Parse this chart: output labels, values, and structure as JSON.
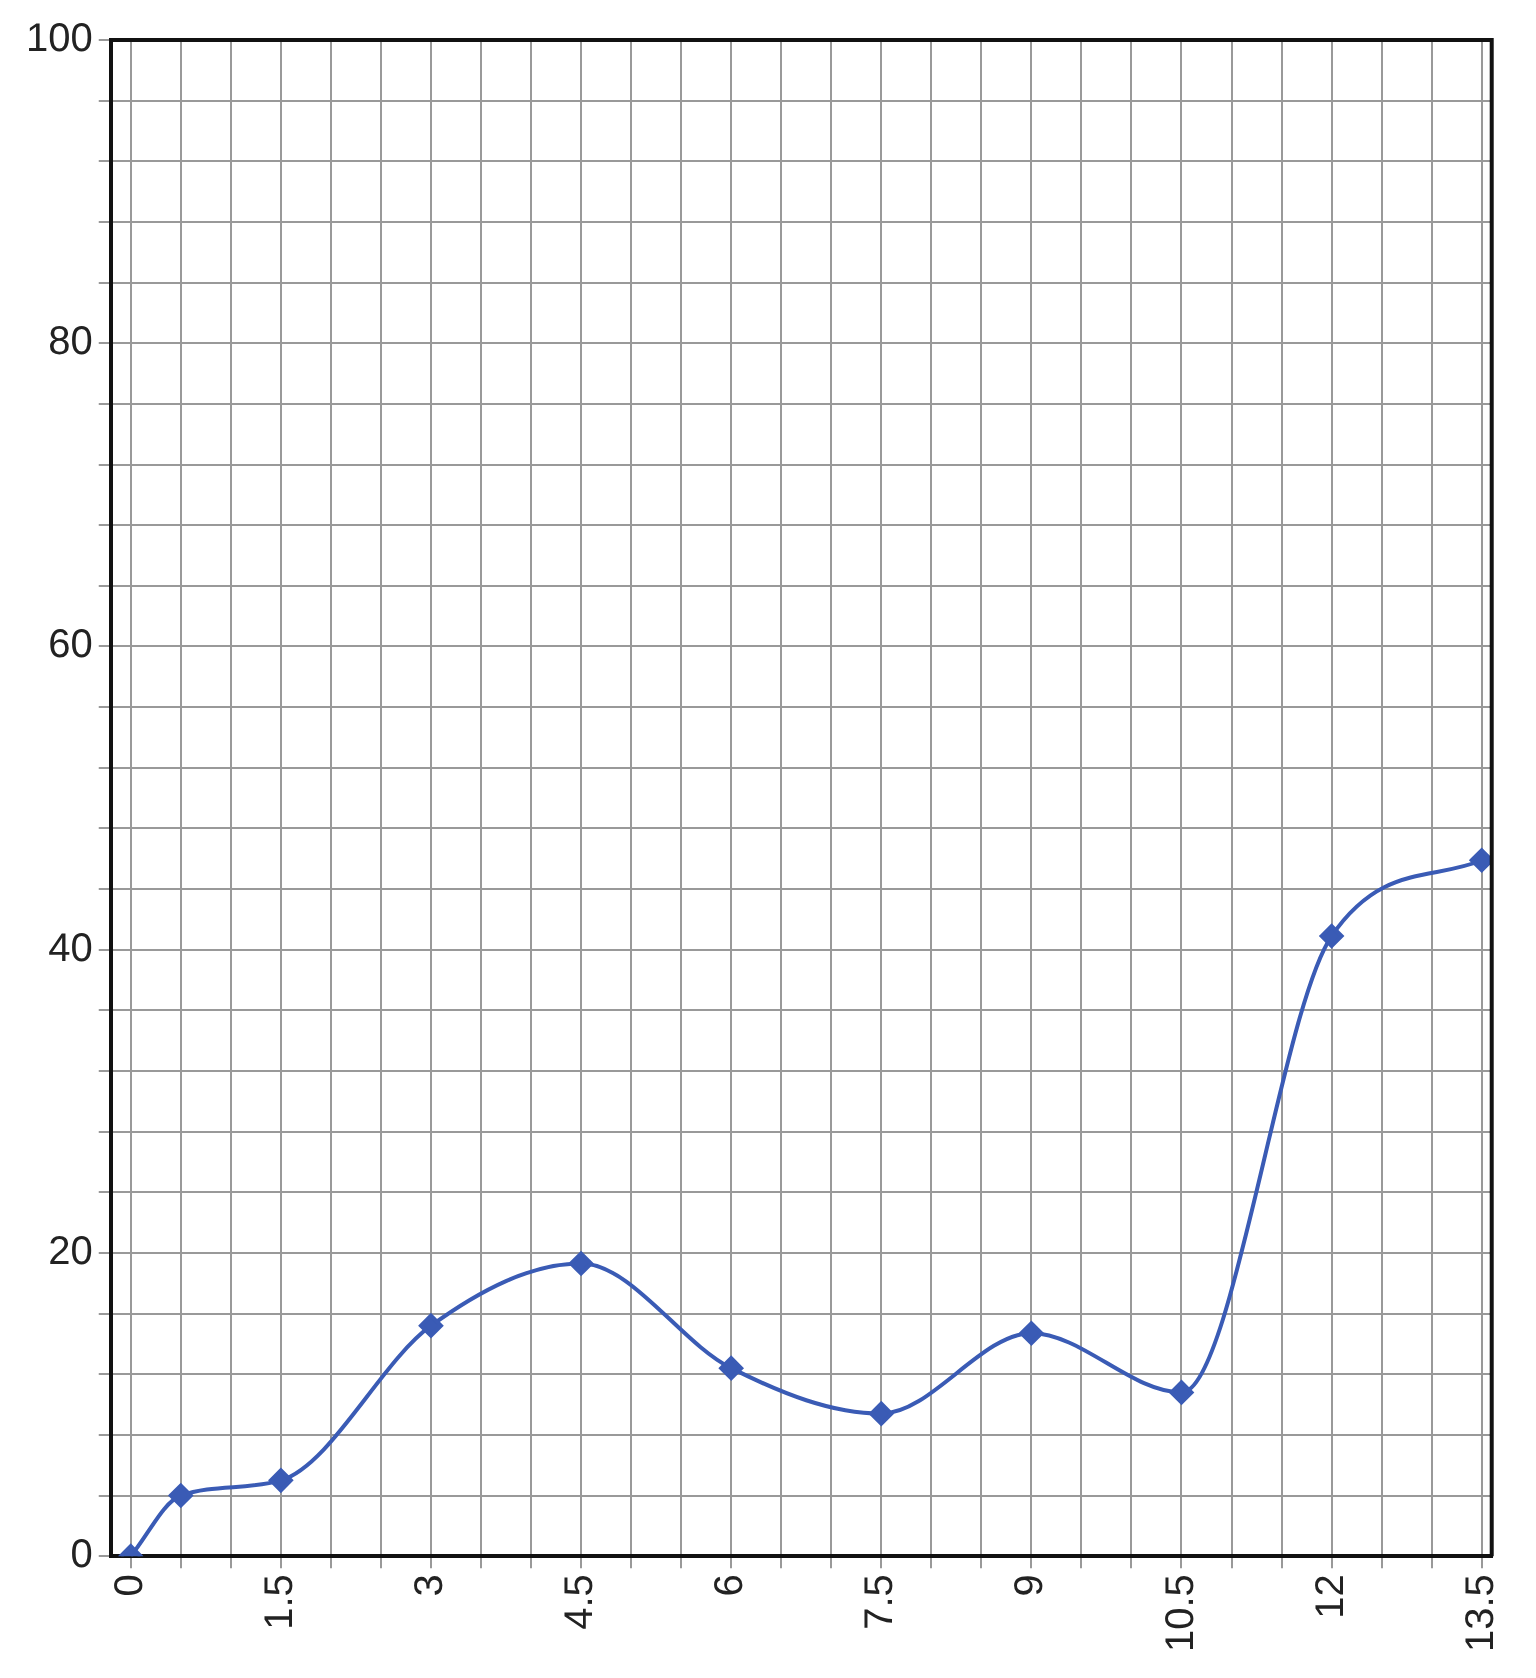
{
  "chart_data": {
    "type": "line",
    "x": [
      0,
      0.5,
      1.5,
      3,
      4.5,
      6,
      7.5,
      9,
      10.5,
      12,
      13.5
    ],
    "series": [
      {
        "color": "#3a5bb5",
        "values": [
          0,
          4,
          5,
          15.2,
          19.3,
          12.4,
          9.4,
          14.7,
          10.8,
          40.9,
          45.9
        ]
      }
    ],
    "xlim": [
      -0.2,
      13.6
    ],
    "xticks": [
      0,
      {
        "value": 0.5,
        "label": null
      },
      {
        "value": 1,
        "label": null
      },
      1.5,
      {
        "value": 2,
        "label": null
      },
      {
        "value": 2.5,
        "label": null
      },
      3,
      {
        "value": 3.5,
        "label": null
      },
      {
        "value": 4,
        "label": null
      },
      4.5,
      {
        "value": 5,
        "label": null
      },
      {
        "value": 5.5,
        "label": null
      },
      6,
      {
        "value": 6.5,
        "label": null
      },
      {
        "value": 7,
        "label": null
      },
      7.5,
      {
        "value": 8,
        "label": null
      },
      {
        "value": 8.5,
        "label": null
      },
      9,
      {
        "value": 9.5,
        "label": null
      },
      {
        "value": 10,
        "label": null
      },
      10.5,
      {
        "value": 11,
        "label": null
      },
      {
        "value": 11.5,
        "label": null
      },
      12,
      {
        "value": 12.5,
        "label": null
      },
      {
        "value": 13,
        "label": null
      },
      13.5
    ],
    "ylim": [
      0,
      100
    ],
    "yticks": [
      0,
      {
        "value": 4,
        "label": null
      },
      {
        "value": 8,
        "label": null
      },
      {
        "value": 12,
        "label": null
      },
      {
        "value": 16,
        "label": null
      },
      20,
      {
        "value": 24,
        "label": null
      },
      {
        "value": 28,
        "label": null
      },
      {
        "value": 32,
        "label": null
      },
      {
        "value": 36,
        "label": null
      },
      40,
      {
        "value": 44,
        "label": null
      },
      {
        "value": 48,
        "label": null
      },
      {
        "value": 52,
        "label": null
      },
      {
        "value": 56,
        "label": null
      },
      60,
      {
        "value": 64,
        "label": null
      },
      {
        "value": 68,
        "label": null
      },
      {
        "value": 72,
        "label": null
      },
      {
        "value": 76,
        "label": null
      },
      80,
      {
        "value": 84,
        "label": null
      },
      {
        "value": 88,
        "label": null
      },
      {
        "value": 92,
        "label": null
      },
      {
        "value": 96,
        "label": null
      },
      100
    ],
    "grid": true,
    "marker": "diamond",
    "line_style": "solid",
    "legend": false
  }
}
